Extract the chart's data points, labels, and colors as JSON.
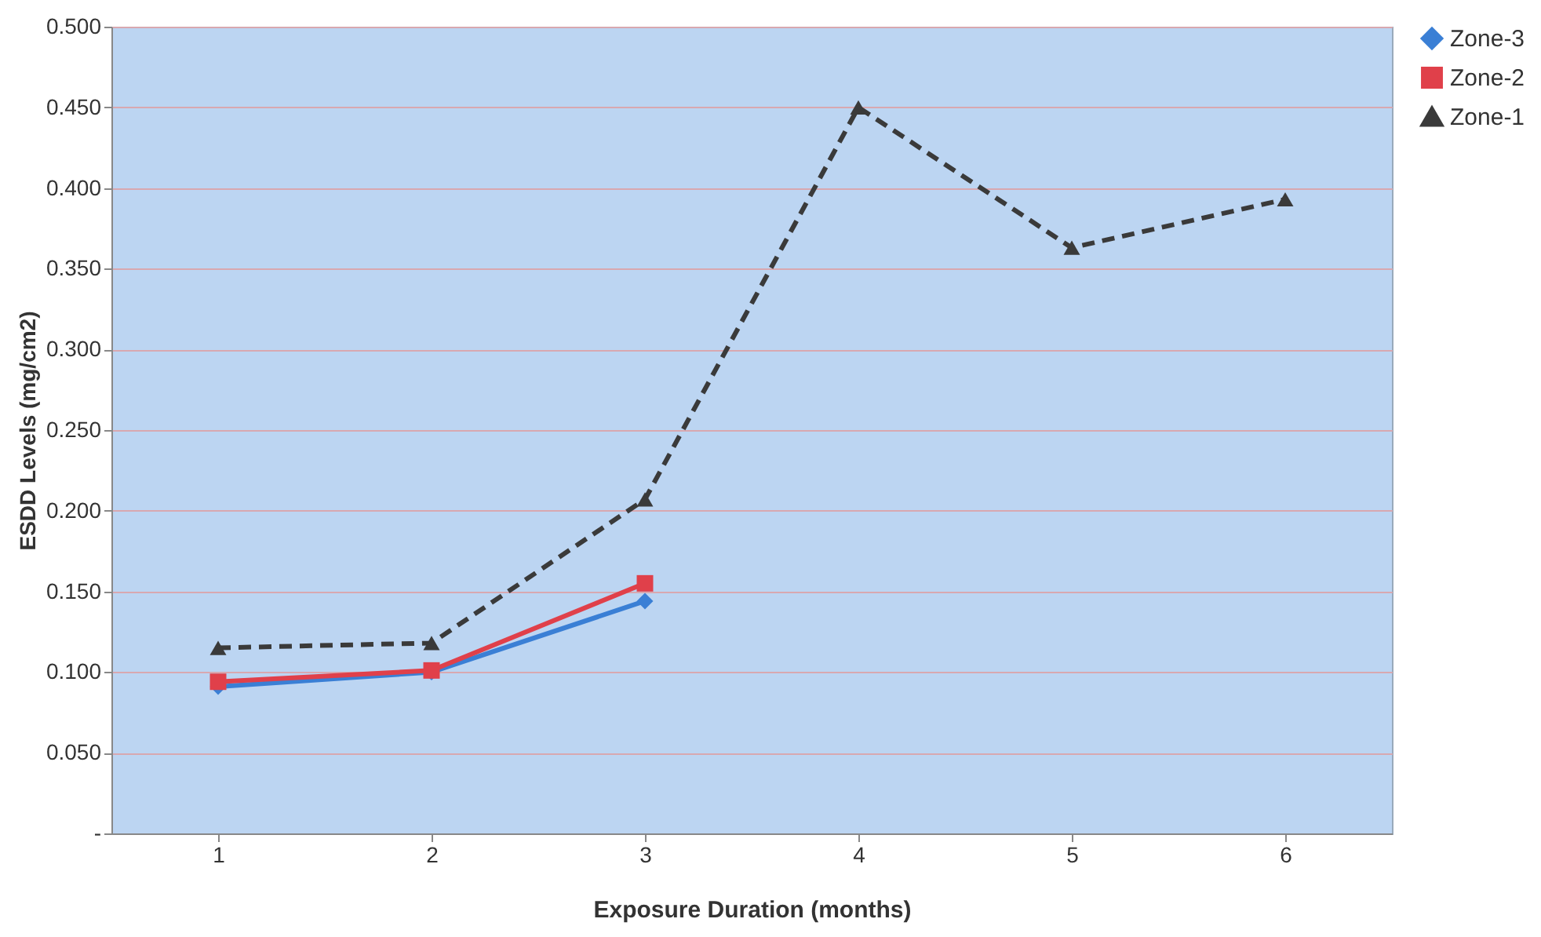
{
  "chart_data": {
    "type": "line",
    "xlabel": "Exposure Duration (months)",
    "ylabel": "ESDD Levels (mg/cm2)",
    "categories": [
      "1",
      "2",
      "3",
      "4",
      "5",
      "6"
    ],
    "series": [
      {
        "name": "Zone-3",
        "color": "#3a7fd5",
        "marker": "diamond",
        "line_style": "solid",
        "values": [
          0.091,
          0.1,
          0.144,
          null,
          null,
          null
        ]
      },
      {
        "name": "Zone-2",
        "color": "#e0404a",
        "marker": "square",
        "line_style": "solid",
        "values": [
          0.094,
          0.101,
          0.155,
          null,
          null,
          null
        ]
      },
      {
        "name": "Zone-1",
        "color": "#3a3a3a",
        "marker": "triangle",
        "line_style": "dashed",
        "values": [
          0.115,
          0.118,
          0.207,
          0.45,
          0.363,
          0.393
        ]
      }
    ],
    "ylim": [
      0,
      0.5
    ],
    "yticks": [
      {
        "value": 0,
        "label": "-"
      },
      {
        "value": 0.05,
        "label": "0.050"
      },
      {
        "value": 0.1,
        "label": "0.100"
      },
      {
        "value": 0.15,
        "label": "0.150"
      },
      {
        "value": 0.2,
        "label": "0.200"
      },
      {
        "value": 0.25,
        "label": "0.250"
      },
      {
        "value": 0.3,
        "label": "0.300"
      },
      {
        "value": 0.35,
        "label": "0.350"
      },
      {
        "value": 0.4,
        "label": "0.400"
      },
      {
        "value": 0.45,
        "label": "0.450"
      },
      {
        "value": 0.5,
        "label": "0.500"
      }
    ],
    "grid": "y",
    "legend": "right"
  }
}
